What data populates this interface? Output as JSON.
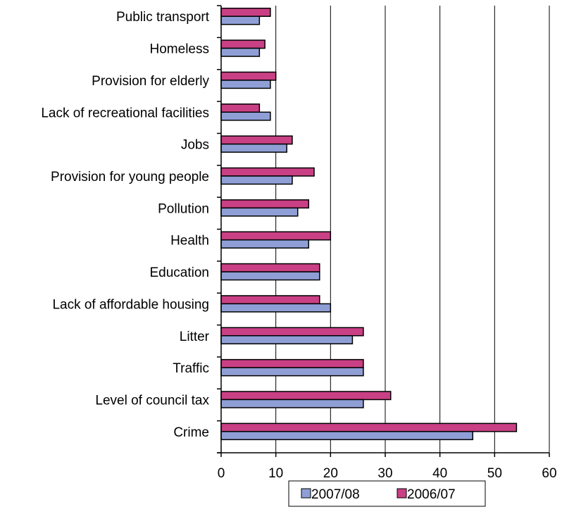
{
  "chart_data": {
    "type": "bar",
    "orientation": "horizontal",
    "title": "",
    "xlabel": "",
    "ylabel": "",
    "xlim": [
      0,
      60
    ],
    "x_ticks": [
      0,
      10,
      20,
      30,
      40,
      50,
      60
    ],
    "grid": "vertical",
    "legend_position": "bottom",
    "categories": [
      "Public transport",
      "Homeless",
      "Provision for elderly",
      "Lack of recreational facilities",
      "Jobs",
      "Provision for young people",
      "Pollution",
      "Health",
      "Education",
      "Lack of affordable housing",
      "Litter",
      "Traffic",
      "Level of council tax",
      "Crime"
    ],
    "series": [
      {
        "name": "2007/08",
        "color": "#8f9fd6",
        "values": [
          7,
          7,
          9,
          9,
          12,
          13,
          14,
          16,
          18,
          20,
          24,
          26,
          26,
          46
        ]
      },
      {
        "name": "2006/07",
        "color": "#c94085",
        "values": [
          9,
          8,
          10,
          7,
          13,
          17,
          16,
          20,
          18,
          18,
          26,
          26,
          31,
          54
        ]
      }
    ]
  }
}
